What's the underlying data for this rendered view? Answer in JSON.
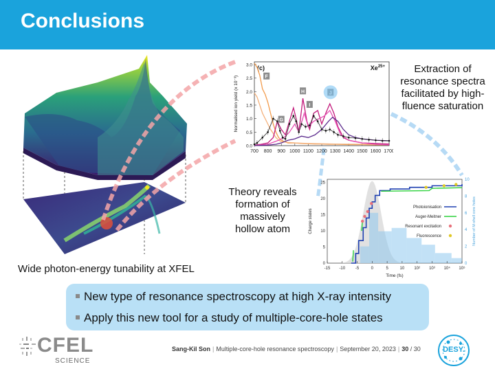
{
  "slide": {
    "title": "Conclusions",
    "captions": {
      "left": "Wide photon-energy tunability at XFEL",
      "top_right": "Extraction of resonance spectra facilitated by high-fluence saturation",
      "middle": "Theory reveals formation of massively hollow atom"
    },
    "bullets": [
      "New type of resonance spectroscopy at high X-ray intensity",
      "Apply this new tool for a study of multiple-core-hole states"
    ],
    "footer": {
      "author": "Sang-Kil Son",
      "talk": "Multiple-core-hole resonance spectroscopy",
      "date": "September 20, 2023",
      "page": "30",
      "total": "30"
    },
    "logos": {
      "cfel": "CFEL",
      "cfel_sub": "SCIENCE",
      "desy": "DESY."
    }
  },
  "chart_data": [
    {
      "type": "line",
      "panel_label": "(c)",
      "species": "Xe",
      "charge": "25+",
      "ylabel": "Normalised ion yield (x 10⁻³)",
      "x_ticks": [
        "700",
        "800",
        "900",
        "1000",
        "1100",
        "1200",
        "1300",
        "1400",
        "1500",
        "1600",
        "1700"
      ],
      "y_ticks": [
        "0.0",
        "0.5",
        "1.0",
        "1.5",
        "2.0",
        "2.5",
        "3.0"
      ],
      "xlim": [
        700,
        1700
      ],
      "ylim": [
        0,
        3.1
      ],
      "peak_labels": [
        {
          "text": "F",
          "x": 790,
          "y": 2.55
        },
        {
          "text": "G",
          "x": 900,
          "y": 0.95
        },
        {
          "text": "H",
          "x": 1060,
          "y": 2.0
        },
        {
          "text": "I",
          "x": 1110,
          "y": 1.5
        },
        {
          "text": "J",
          "x": 1265,
          "y": 1.95
        }
      ],
      "series": [
        {
          "color": "#f29a4a",
          "x": [
            700,
            720,
            740,
            760,
            780,
            800,
            820,
            840,
            860,
            880,
            900,
            920,
            950,
            1000,
            1050,
            1100,
            1150,
            1200,
            1250,
            1300,
            1400,
            1500,
            1600,
            1700
          ],
          "values": [
            3.05,
            2.9,
            2.6,
            2.1,
            1.9,
            1.6,
            1.2,
            0.8,
            0.5,
            0.3,
            0.2,
            0.15,
            0.1,
            0.1,
            0.08,
            0.07,
            0.06,
            0.06,
            0.05,
            0.05,
            0.04,
            0.04,
            0.03,
            0.03
          ]
        },
        {
          "color": "#f4b07a",
          "x": [
            700,
            720,
            740,
            760,
            780,
            800,
            820,
            840,
            860,
            880,
            900,
            950,
            1000,
            1100,
            1200,
            1300,
            1500,
            1700
          ],
          "values": [
            1.95,
            1.8,
            1.5,
            1.2,
            1.0,
            0.8,
            0.6,
            0.45,
            0.3,
            0.2,
            0.15,
            0.12,
            0.1,
            0.08,
            0.07,
            0.06,
            0.05,
            0.04
          ]
        },
        {
          "color": "#c2187a",
          "x": [
            700,
            750,
            800,
            840,
            870,
            900,
            930,
            960,
            990,
            1010,
            1030,
            1060,
            1090,
            1110,
            1140,
            1170,
            1200,
            1230,
            1260,
            1290,
            1320,
            1360,
            1400,
            1500,
            1600,
            1700
          ],
          "values": [
            0.02,
            0.05,
            0.1,
            0.3,
            0.9,
            0.6,
            0.4,
            0.9,
            1.4,
            1.0,
            0.5,
            1.75,
            0.9,
            0.6,
            1.2,
            1.3,
            0.8,
            1.2,
            1.55,
            1.2,
            0.7,
            0.3,
            0.2,
            0.1,
            0.08,
            0.06
          ]
        },
        {
          "color": "#e64fb3",
          "x": [
            700,
            800,
            880,
            920,
            960,
            1000,
            1030,
            1070,
            1100,
            1140,
            1180,
            1220,
            1260,
            1300,
            1340,
            1400,
            1500,
            1600,
            1700
          ],
          "values": [
            0.0,
            0.05,
            0.2,
            0.3,
            0.5,
            0.8,
            0.5,
            1.2,
            0.7,
            0.9,
            1.0,
            1.1,
            1.3,
            0.9,
            0.4,
            0.2,
            0.1,
            0.05,
            0.03
          ]
        },
        {
          "color": "#5b2a8c",
          "x": [
            700,
            800,
            860,
            900,
            950,
            1000,
            1050,
            1100,
            1150,
            1200,
            1250,
            1280,
            1320,
            1360,
            1400,
            1450,
            1500,
            1600,
            1700
          ],
          "values": [
            0.0,
            0.02,
            0.05,
            0.1,
            0.2,
            0.25,
            0.35,
            0.3,
            0.4,
            0.6,
            0.9,
            1.05,
            0.9,
            0.6,
            0.4,
            0.3,
            0.25,
            0.2,
            0.18
          ]
        },
        {
          "color": "#222222",
          "markers": true,
          "x": [
            700,
            720,
            760,
            800,
            840,
            870,
            890,
            910,
            930,
            960,
            990,
            1010,
            1030,
            1050,
            1080,
            1110,
            1140,
            1170,
            1200,
            1230,
            1260,
            1290,
            1320,
            1360,
            1400,
            1450,
            1500,
            1550,
            1600,
            1650,
            1700
          ],
          "values": [
            0.05,
            0.1,
            0.3,
            0.5,
            1.0,
            0.9,
            0.55,
            0.3,
            0.25,
            0.8,
            1.1,
            0.9,
            0.5,
            0.8,
            0.7,
            0.75,
            1.1,
            0.9,
            0.6,
            0.55,
            0.6,
            0.5,
            0.4,
            0.35,
            0.3,
            0.28,
            0.25,
            0.22,
            0.2,
            0.18,
            0.18
          ]
        }
      ]
    },
    {
      "type": "line",
      "ylabel": "Charge states",
      "y2label": "Number of M-shell core holes",
      "xlabel": "Time (fs)",
      "x_ticks": [
        "-15",
        "-10",
        "-5",
        "0",
        "5",
        "10",
        "10²",
        "10³",
        "10⁴",
        "10⁵"
      ],
      "y_ticks": [
        "0",
        "5",
        "10",
        "15",
        "20",
        "25"
      ],
      "y2_ticks": [
        "0",
        "2",
        "4",
        "6",
        "8",
        "10"
      ],
      "ylim": [
        0,
        26
      ],
      "legend": [
        {
          "label": "Photoionisation",
          "color": "#1d3fb0",
          "kind": "line"
        },
        {
          "label": "Auger-Meitner",
          "color": "#2bd13a",
          "kind": "line"
        },
        {
          "label": "Resonant excitation",
          "color": "#e8707a",
          "kind": "dot"
        },
        {
          "label": "Fluorescence",
          "color": "#e0c824",
          "kind": "dot"
        }
      ]
    }
  ]
}
